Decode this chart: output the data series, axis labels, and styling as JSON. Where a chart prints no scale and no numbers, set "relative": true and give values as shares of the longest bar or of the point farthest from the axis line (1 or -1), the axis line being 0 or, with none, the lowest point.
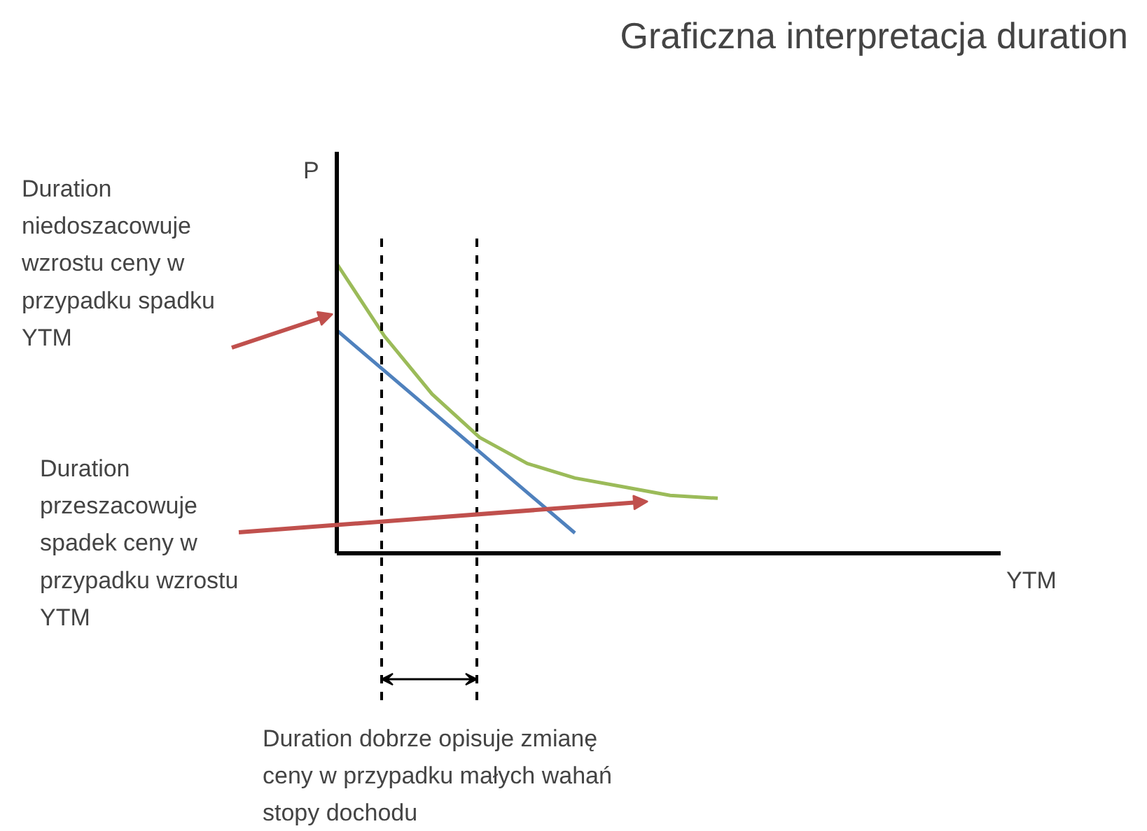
{
  "chart_data": {
    "type": "line",
    "title": "Graficzna interpretacja duration",
    "ylabel": "P",
    "relative": true,
    "categories": [
      null,
      null,
      null,
      null,
      null,
      null,
      null,
      null,
      null
    ],
    "series": [
      {
        "color": "#9bbb59",
        "values": [
          1.0,
          0.75,
          0.55,
          0.4,
          0.31,
          0.26,
          0.23,
          0.2,
          0.19
        ]
      },
      {
        "color": "#4f81bd",
        "values": [
          0.77,
          0.63,
          0.49,
          0.35,
          0.21,
          0.07,
          null,
          null,
          null
        ]
      }
    ],
    "annotations": [
      "YTM",
      "Duration\nniedoszacowuje\nwzrostu ceny w\nprzypadku spadku\nYTM",
      "Duration\nprzeszacowuje\nspadek ceny w\nprzypadku wzrostu\nYTM",
      "Duration dobrze opisuje zmianę\nceny w przypadku małych wahań\nstopy dochodu"
    ],
    "grid": false,
    "marker": "none",
    "line_style": "solid"
  }
}
